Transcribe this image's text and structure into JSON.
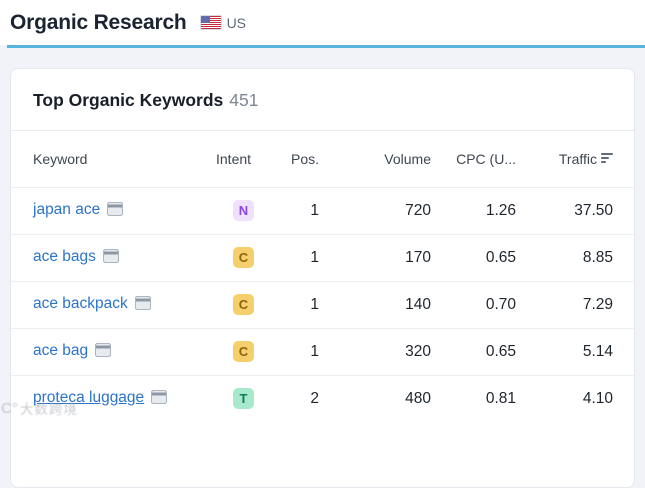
{
  "header": {
    "title": "Organic Research",
    "country": "US"
  },
  "card": {
    "title": "Top Organic Keywords",
    "count": "451"
  },
  "table": {
    "columns": {
      "keyword": "Keyword",
      "intent": "Intent",
      "pos": "Pos.",
      "volume": "Volume",
      "cpc": "CPC (U...",
      "traffic": "Traffic"
    },
    "rows": [
      {
        "keyword": "japan ace",
        "intent": "N",
        "pos": "1",
        "volume": "720",
        "cpc": "1.26",
        "traffic": "37.50"
      },
      {
        "keyword": "ace bags",
        "intent": "C",
        "pos": "1",
        "volume": "170",
        "cpc": "0.65",
        "traffic": "8.85"
      },
      {
        "keyword": "ace backpack",
        "intent": "C",
        "pos": "1",
        "volume": "140",
        "cpc": "0.70",
        "traffic": "7.29"
      },
      {
        "keyword": "ace bag",
        "intent": "C",
        "pos": "1",
        "volume": "320",
        "cpc": "0.65",
        "traffic": "5.14"
      },
      {
        "keyword": "proteca luggage",
        "intent": "T",
        "pos": "2",
        "volume": "480",
        "cpc": "0.81",
        "traffic": "4.10"
      }
    ]
  },
  "intent_colors": {
    "N": {
      "bg": "#EFE1FB",
      "fg": "#8A46E4"
    },
    "C": {
      "bg": "#F5CF6B",
      "fg": "#8A6612"
    },
    "T": {
      "bg": "#A6EACB",
      "fg": "#0F7A60"
    }
  },
  "colors": {
    "accent_line": "#54B4DC",
    "link": "#2B74C8",
    "page_bg": "#F1F3F8"
  },
  "watermark": {
    "logo_glyph": "C°",
    "text": "大数跨境"
  }
}
